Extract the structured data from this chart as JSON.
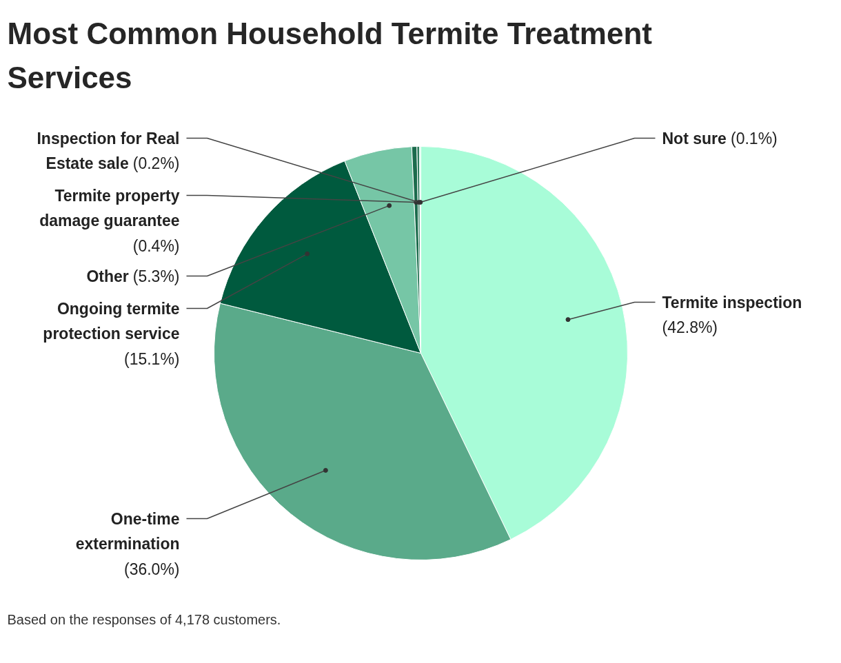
{
  "chart_data": {
    "type": "pie",
    "title": "Most Common Household Termite Treatment Services",
    "categories": [
      "Termite inspection",
      "One-time extermination",
      "Ongoing termite protection service",
      "Other",
      "Termite property damage guarantee",
      "Inspection for Real Estate sale",
      "Not sure"
    ],
    "values": [
      42.8,
      36.0,
      15.1,
      5.3,
      0.4,
      0.2,
      0.1
    ],
    "colors": [
      "#a8fcd8",
      "#5aaa8a",
      "#005a3e",
      "#76c6a6",
      "#1b6b4c",
      "#2e7d5e",
      "#c8fce6"
    ],
    "value_labels": [
      "(42.8%)",
      "(36.0%)",
      "(15.1%)",
      "(5.3%)",
      "(0.4%)",
      "(0.2%)",
      "(0.1%)"
    ],
    "annotations": [
      "Based on the responses of 4,178 customers."
    ]
  }
}
